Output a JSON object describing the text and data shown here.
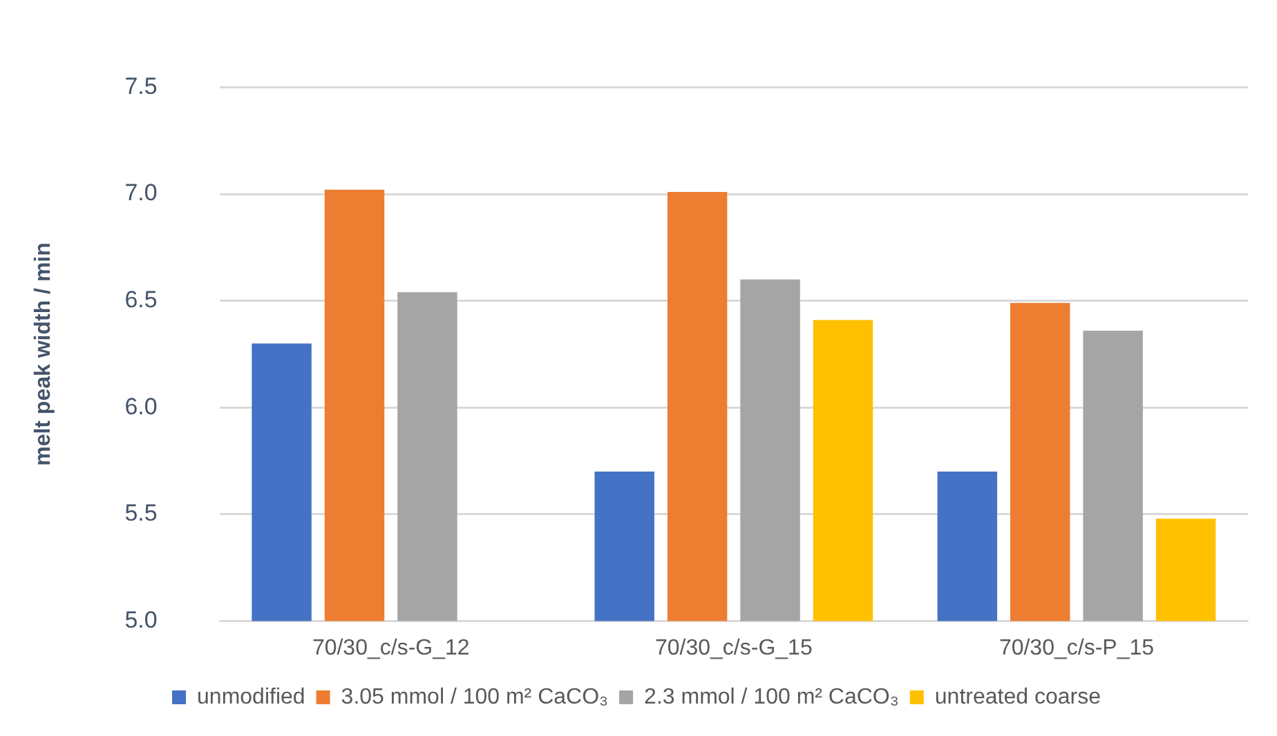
{
  "chart_data": {
    "type": "bar",
    "ylabel": "melt peak width / min",
    "categories": [
      "70/30_c/s-G_12",
      "70/30_c/s-G_15",
      "70/30_c/s-P_15"
    ],
    "series": [
      {
        "name": "unmodified",
        "color": "#4472c4",
        "values": [
          6.3,
          5.7,
          5.7
        ]
      },
      {
        "name": "3.05 mmol / 100 m² CaCO₃",
        "color": "#ed7d31",
        "values": [
          7.02,
          7.01,
          6.49
        ]
      },
      {
        "name": "2.3 mmol / 100 m² CaCO₃",
        "color": "#a5a5a5",
        "values": [
          6.54,
          6.6,
          6.36
        ]
      },
      {
        "name": "untreated coarse",
        "color": "#ffc000",
        "values": [
          null,
          6.41,
          5.48
        ]
      }
    ],
    "ylim": [
      5,
      7.5
    ],
    "yticks": [
      {
        "value": 5,
        "label": "5.0"
      },
      {
        "value": 5.5,
        "label": "5.5"
      },
      {
        "value": 6,
        "label": "6.0"
      },
      {
        "value": 6.5,
        "label": "6.5"
      },
      {
        "value": 7,
        "label": "7.0"
      },
      {
        "value": 7.5,
        "label": "7.5"
      }
    ],
    "grid": "y",
    "legend": "bottom"
  }
}
